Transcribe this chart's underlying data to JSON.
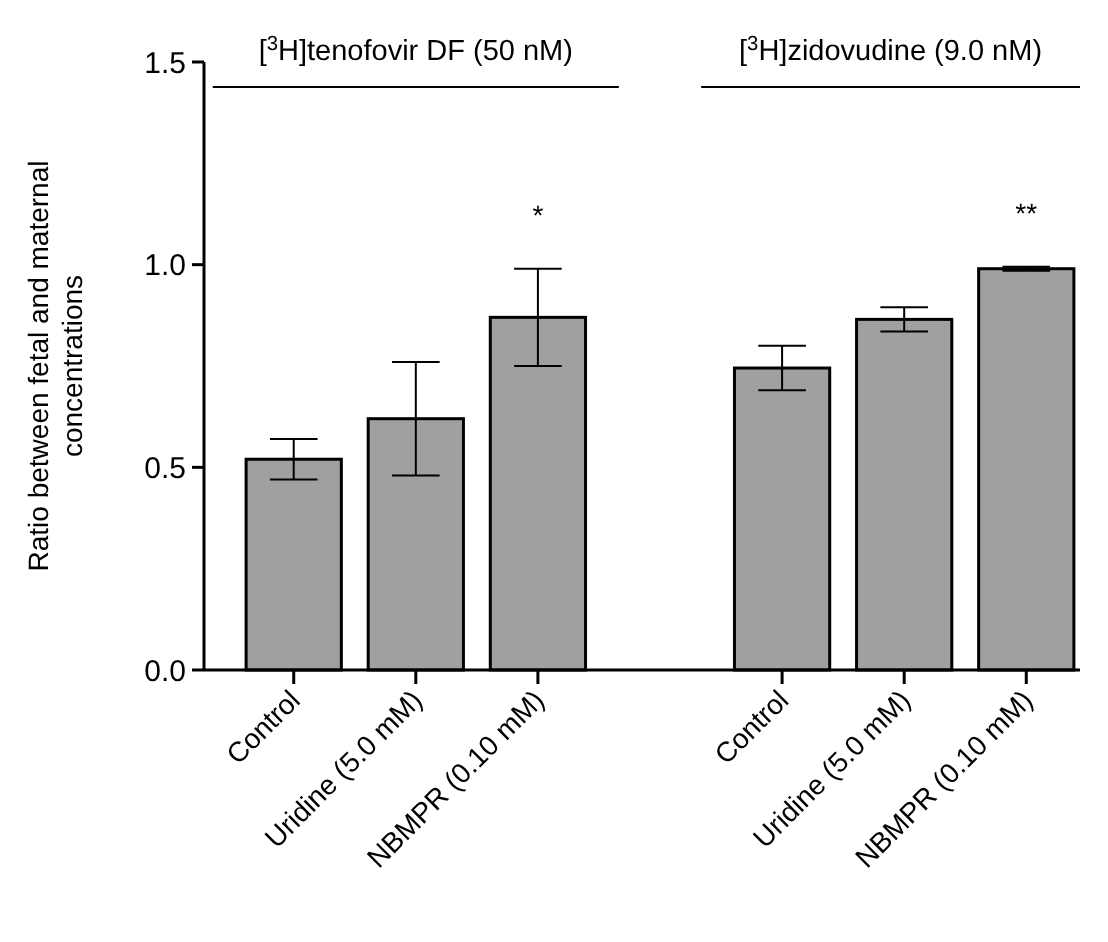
{
  "chart_data": {
    "type": "bar",
    "ylabel": "Ratio between fetal and maternal concentrations",
    "categories": [
      "Control",
      "Uridine (5.0 mM)",
      "NBMPR (0.10 mM)",
      null,
      "Control",
      "Uridine (5.0 mM)",
      "NBMPR (0.10 mM)"
    ],
    "values": [
      0.52,
      0.62,
      0.87,
      null,
      0.745,
      0.865,
      0.99
    ],
    "errors": [
      0.05,
      0.14,
      0.12,
      null,
      0.055,
      0.03,
      0.005
    ],
    "value_labels": [
      null,
      null,
      "*",
      null,
      null,
      null,
      "**"
    ],
    "color": "#a0a0a0",
    "annotations": [
      "[$^{3}$H]tenofovir DF (50 nM)",
      "[$^{3}$H]zidovudine (9.0 nM)"
    ],
    "ylim": [
      0,
      1.5
    ],
    "yticks": [
      {
        "value": 0,
        "label": "0.0"
      },
      0.5,
      {
        "value": 1,
        "label": "1.0"
      },
      1.5
    ],
    "grid": false
  }
}
